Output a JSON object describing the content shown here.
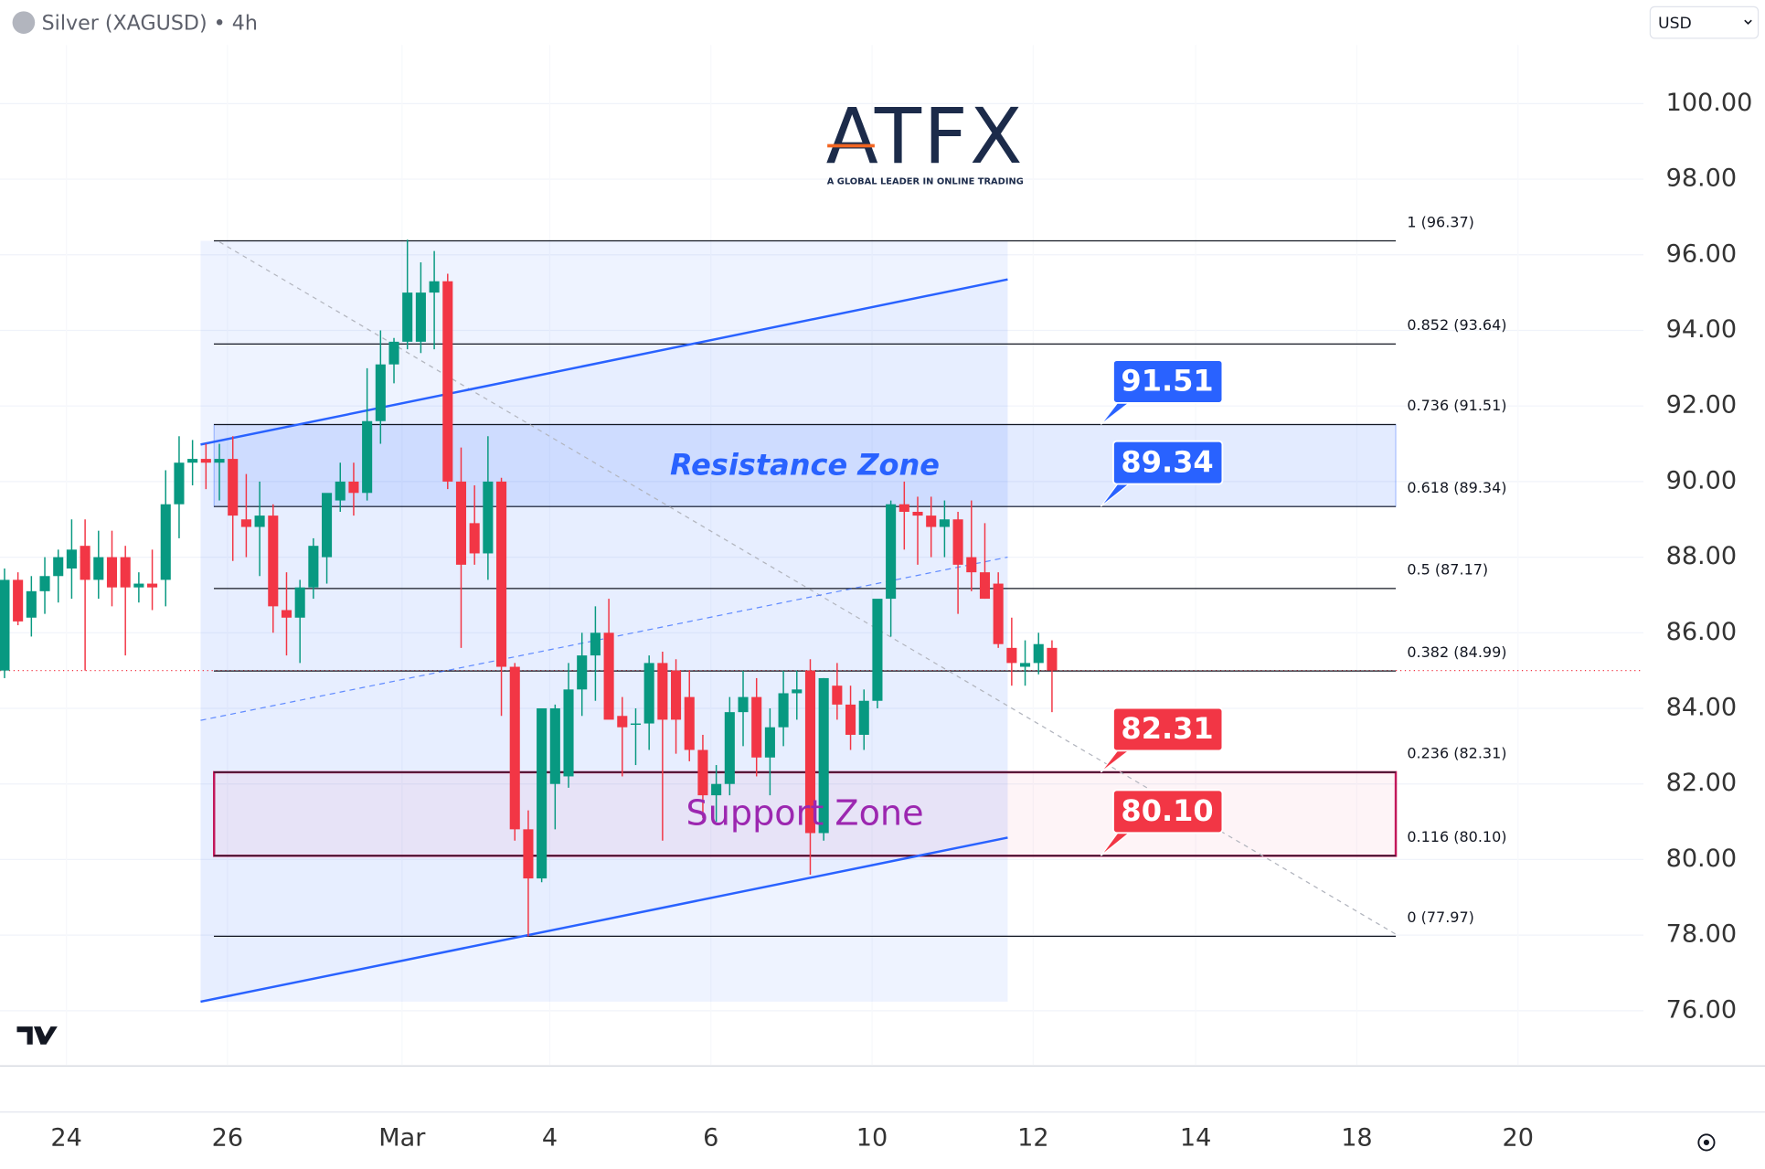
{
  "chart_data": {
    "type": "candlestick",
    "title": "Silver (XAGUSD) • 4h",
    "currency": "USD",
    "logo": {
      "text": "ATFX",
      "tagline": "A GLOBAL LEADER IN ONLINE TRADING"
    },
    "xlim": [
      -0.335,
      122.04
    ],
    "xticks": [
      {
        "value": 4.61,
        "label": "24"
      },
      {
        "value": 16.6,
        "label": "26"
      },
      {
        "value": 29.6,
        "label": "Mar"
      },
      {
        "value": 40.6,
        "label": "4"
      },
      {
        "value": 52.6,
        "label": "6"
      },
      {
        "value": 64.6,
        "label": "10"
      },
      {
        "value": 76.6,
        "label": "12"
      },
      {
        "value": 88.7,
        "label": "14"
      },
      {
        "value": 100.7,
        "label": "18"
      },
      {
        "value": 112.7,
        "label": "20"
      }
    ],
    "ylim": [
      74.6,
      101.55
    ],
    "yticks": [
      {
        "value": 100,
        "label": "100.00"
      },
      {
        "value": 98,
        "label": "98.00"
      },
      {
        "value": 96,
        "label": "96.00"
      },
      {
        "value": 94,
        "label": "94.00"
      },
      {
        "value": 92,
        "label": "92.00"
      },
      {
        "value": 90,
        "label": "90.00"
      },
      {
        "value": 88,
        "label": "88.00"
      },
      {
        "value": 86,
        "label": "86.00"
      },
      {
        "value": 84,
        "label": "84.00"
      },
      {
        "value": 82,
        "label": "82.00"
      },
      {
        "value": 80,
        "label": "80.00"
      },
      {
        "value": 78,
        "label": "78.00"
      },
      {
        "value": 76,
        "label": "76.00"
      }
    ],
    "grid": true,
    "up_color": "#089981",
    "down_color": "#f23645",
    "candles": {
      "open": [
        85.0,
        87.4,
        86.4,
        87.1,
        87.5,
        87.7,
        88.3,
        87.4,
        88.0,
        88.0,
        87.2,
        87.3,
        87.4,
        89.4,
        90.5,
        90.6,
        90.5,
        90.6,
        89.0,
        88.8,
        89.1,
        86.6,
        86.4,
        87.2,
        88.0,
        89.5,
        90.0,
        89.7,
        91.6,
        93.1,
        93.7,
        93.7,
        95.0,
        95.3,
        90.0,
        88.9,
        88.1,
        90.0,
        85.1,
        80.8,
        79.5,
        82.0,
        82.2,
        84.5,
        85.4,
        86.0,
        83.8,
        83.6,
        83.6,
        85.2,
        85.0,
        84.3,
        82.9,
        81.7,
        82.0,
        83.9,
        84.3,
        82.7,
        83.5,
        84.4,
        85.0,
        80.7,
        84.6,
        84.1,
        83.3,
        84.2,
        86.9,
        89.4,
        89.2,
        89.1,
        88.8,
        89.0,
        88.0,
        87.6,
        87.3,
        85.6,
        85.1,
        85.2,
        85.6
      ],
      "high": [
        87.7,
        87.6,
        87.5,
        88.0,
        88.2,
        89.0,
        89.0,
        88.7,
        88.7,
        88.3,
        87.6,
        88.2,
        90.3,
        91.2,
        91.1,
        91.0,
        91.0,
        91.2,
        90.2,
        90.0,
        89.4,
        87.6,
        87.4,
        88.5,
        89.3,
        90.5,
        90.5,
        93.0,
        94.0,
        93.8,
        96.4,
        95.8,
        96.1,
        95.5,
        90.9,
        89.9,
        91.2,
        90.1,
        85.2,
        81.3,
        84.0,
        84.1,
        85.2,
        86.0,
        86.7,
        86.9,
        84.3,
        84.0,
        85.4,
        85.5,
        85.3,
        85.0,
        83.3,
        82.5,
        84.3,
        85.0,
        84.8,
        84.0,
        85.0,
        85.0,
        85.3,
        84.8,
        85.2,
        84.6,
        84.5,
        86.8,
        89.5,
        90.0,
        89.6,
        89.6,
        89.5,
        89.2,
        89.5,
        88.9,
        87.6,
        86.4,
        85.8,
        86.0,
        85.8
      ],
      "low": [
        84.8,
        86.2,
        85.9,
        86.5,
        86.8,
        86.9,
        85.0,
        86.9,
        86.7,
        85.4,
        86.8,
        86.6,
        86.7,
        88.5,
        89.9,
        89.8,
        89.5,
        87.9,
        88.0,
        87.5,
        86.0,
        85.4,
        85.2,
        86.9,
        87.3,
        89.2,
        89.1,
        89.5,
        91.0,
        92.6,
        93.5,
        93.4,
        93.5,
        89.8,
        85.6,
        87.8,
        87.4,
        83.8,
        80.5,
        77.97,
        79.4,
        80.8,
        81.9,
        83.8,
        84.2,
        84.0,
        82.2,
        82.5,
        82.9,
        80.5,
        82.8,
        82.6,
        81.1,
        81.0,
        81.7,
        83.0,
        82.2,
        81.7,
        83.0,
        83.7,
        79.6,
        80.5,
        83.7,
        82.9,
        82.9,
        84.0,
        85.9,
        88.2,
        87.8,
        88.0,
        88.0,
        86.5,
        87.1,
        86.9,
        85.6,
        84.6,
        84.6,
        84.9,
        83.9
      ],
      "close": [
        87.4,
        86.3,
        87.1,
        87.5,
        88.0,
        88.2,
        87.4,
        88.0,
        87.2,
        87.2,
        87.3,
        87.2,
        89.4,
        90.5,
        90.6,
        90.5,
        90.6,
        89.1,
        88.8,
        89.1,
        86.7,
        86.4,
        87.2,
        88.3,
        89.7,
        90.0,
        89.7,
        91.6,
        93.1,
        93.7,
        95.0,
        95.0,
        95.3,
        90.0,
        87.8,
        88.1,
        90.0,
        85.1,
        80.8,
        79.5,
        84.0,
        84.0,
        84.5,
        85.4,
        86.0,
        83.7,
        83.5,
        83.6,
        85.2,
        83.7,
        83.7,
        82.9,
        81.7,
        82.0,
        83.9,
        84.3,
        82.7,
        83.5,
        84.4,
        84.5,
        80.7,
        84.8,
        84.1,
        83.3,
        84.2,
        86.9,
        89.4,
        89.2,
        89.1,
        88.8,
        89.0,
        87.8,
        87.6,
        86.9,
        85.7,
        85.2,
        85.2,
        85.7,
        85.0
      ]
    },
    "fib_levels": [
      {
        "value": 96.37,
        "label": "1 (96.37)"
      },
      {
        "value": 93.64,
        "label": "0.852 (93.64)"
      },
      {
        "value": 91.51,
        "label": "0.736 (91.51)"
      },
      {
        "value": 89.34,
        "label": "0.618 (89.34)"
      },
      {
        "value": 87.17,
        "label": "0.5 (87.17)"
      },
      {
        "value": 84.99,
        "label": "0.382 (84.99)"
      },
      {
        "value": 82.31,
        "label": "0.236 (82.31)"
      },
      {
        "value": 80.1,
        "label": "0.116 (80.10)"
      },
      {
        "value": 77.97,
        "label": "0 (77.97)"
      }
    ],
    "zones": [
      {
        "name": "Resistance Zone",
        "range": [
          89.34,
          91.51
        ],
        "color": "#2962ff"
      },
      {
        "name": "Support Zone",
        "range": [
          80.1,
          82.31
        ],
        "color": "#c2185b"
      }
    ],
    "price_tags": {
      "values": [
        91.51,
        89.34,
        82.31,
        80.1
      ],
      "value_labels": [
        "91.51",
        "89.34",
        "82.31",
        "80.10"
      ],
      "colors": [
        "#2962ff",
        "#2962ff",
        "#f23645",
        "#f23645"
      ]
    },
    "channel": {
      "x": [
        14.6,
        74.7
      ],
      "upper": [
        90.98,
        95.35
      ],
      "lower": [
        76.24,
        80.58
      ],
      "color": "#2962ff"
    }
  }
}
